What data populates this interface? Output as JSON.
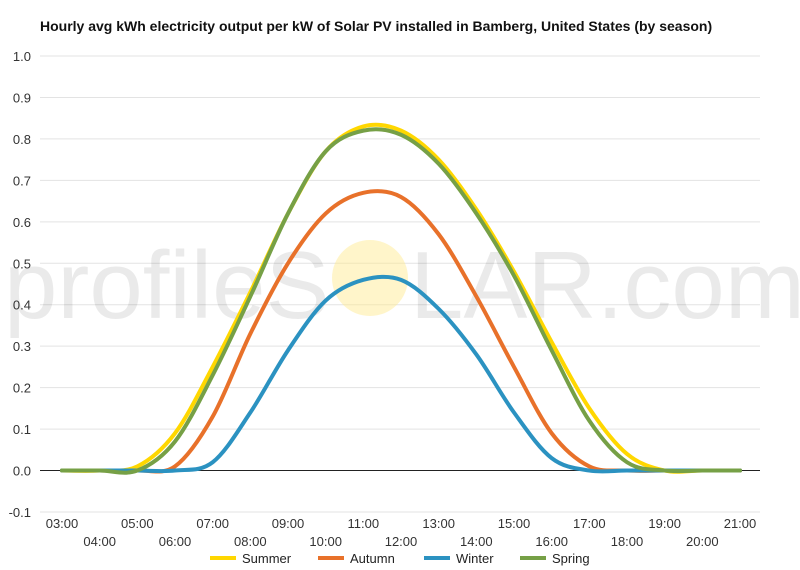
{
  "chart_data": {
    "type": "line",
    "title": "Hourly avg kWh electricity output per kW of Solar PV installed in Bamberg, United States (by season)",
    "xlabel": "",
    "ylabel": "",
    "ylim": [
      -0.1,
      1.0
    ],
    "yticks": [
      "-0.1",
      "0.0",
      "0.1",
      "0.2",
      "0.3",
      "0.4",
      "0.5",
      "0.6",
      "0.7",
      "0.8",
      "0.9",
      "1.0"
    ],
    "x": [
      "03:00",
      "04:00",
      "05:00",
      "06:00",
      "07:00",
      "08:00",
      "09:00",
      "10:00",
      "11:00",
      "12:00",
      "13:00",
      "14:00",
      "15:00",
      "16:00",
      "17:00",
      "18:00",
      "19:00",
      "20:00",
      "21:00"
    ],
    "grid": true,
    "legend_position": "bottom",
    "series": [
      {
        "name": "Summer",
        "color": "#FFD700",
        "values": [
          0,
          0,
          0.01,
          0.09,
          0.25,
          0.43,
          0.62,
          0.77,
          0.83,
          0.82,
          0.75,
          0.63,
          0.48,
          0.31,
          0.15,
          0.04,
          0.0,
          0.0,
          0.0
        ]
      },
      {
        "name": "Autumn",
        "color": "#E8712A",
        "values": [
          0,
          0,
          0,
          0.01,
          0.13,
          0.33,
          0.5,
          0.62,
          0.67,
          0.66,
          0.57,
          0.42,
          0.25,
          0.09,
          0.01,
          0,
          0,
          0,
          0
        ]
      },
      {
        "name": "Winter",
        "color": "#2B92C1",
        "values": [
          0,
          0,
          0,
          0,
          0.02,
          0.14,
          0.29,
          0.41,
          0.46,
          0.46,
          0.39,
          0.28,
          0.14,
          0.03,
          0,
          0,
          0,
          0,
          0
        ]
      },
      {
        "name": "Spring",
        "color": "#76A046",
        "values": [
          0,
          0,
          0,
          0.07,
          0.23,
          0.42,
          0.62,
          0.77,
          0.82,
          0.81,
          0.74,
          0.62,
          0.47,
          0.29,
          0.12,
          0.02,
          0,
          0,
          0
        ]
      }
    ]
  },
  "watermark": {
    "left": "profileS",
    "right": "LAR.com"
  }
}
